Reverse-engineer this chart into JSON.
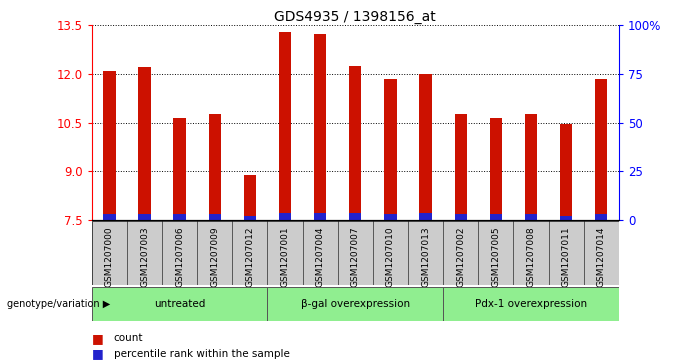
{
  "title": "GDS4935 / 1398156_at",
  "samples": [
    "GSM1207000",
    "GSM1207003",
    "GSM1207006",
    "GSM1207009",
    "GSM1207012",
    "GSM1207001",
    "GSM1207004",
    "GSM1207007",
    "GSM1207010",
    "GSM1207013",
    "GSM1207002",
    "GSM1207005",
    "GSM1207008",
    "GSM1207011",
    "GSM1207014"
  ],
  "count_values": [
    12.1,
    12.2,
    10.65,
    10.75,
    8.88,
    13.3,
    13.25,
    12.25,
    11.85,
    12.0,
    10.75,
    10.65,
    10.75,
    10.45,
    11.85
  ],
  "blue_heights": [
    0.18,
    0.18,
    0.18,
    0.18,
    0.1,
    0.2,
    0.2,
    0.2,
    0.18,
    0.2,
    0.18,
    0.18,
    0.18,
    0.1,
    0.18
  ],
  "groups": [
    {
      "label": "untreated",
      "start": 0,
      "end": 5
    },
    {
      "label": "β-gal overexpression",
      "start": 5,
      "end": 10
    },
    {
      "label": "Pdx-1 overexpression",
      "start": 10,
      "end": 15
    }
  ],
  "bar_color": "#cc1100",
  "blue_color": "#2222cc",
  "ylim_left": [
    7.5,
    13.5
  ],
  "ylim_right": [
    0,
    100
  ],
  "yticks_left": [
    7.5,
    9.0,
    10.5,
    12.0,
    13.5
  ],
  "yticks_right": [
    0,
    25,
    50,
    75,
    100
  ],
  "ytick_labels_right": [
    "0",
    "25",
    "50",
    "75",
    "100%"
  ],
  "bar_width": 0.35,
  "background_color": "#ffffff",
  "label_box_color": "#cccccc",
  "group_box_color": "#90ee90",
  "genotype_label": "genotype/variation",
  "legend_count": "count",
  "legend_percentile": "percentile rank within the sample",
  "base_value": 7.5
}
